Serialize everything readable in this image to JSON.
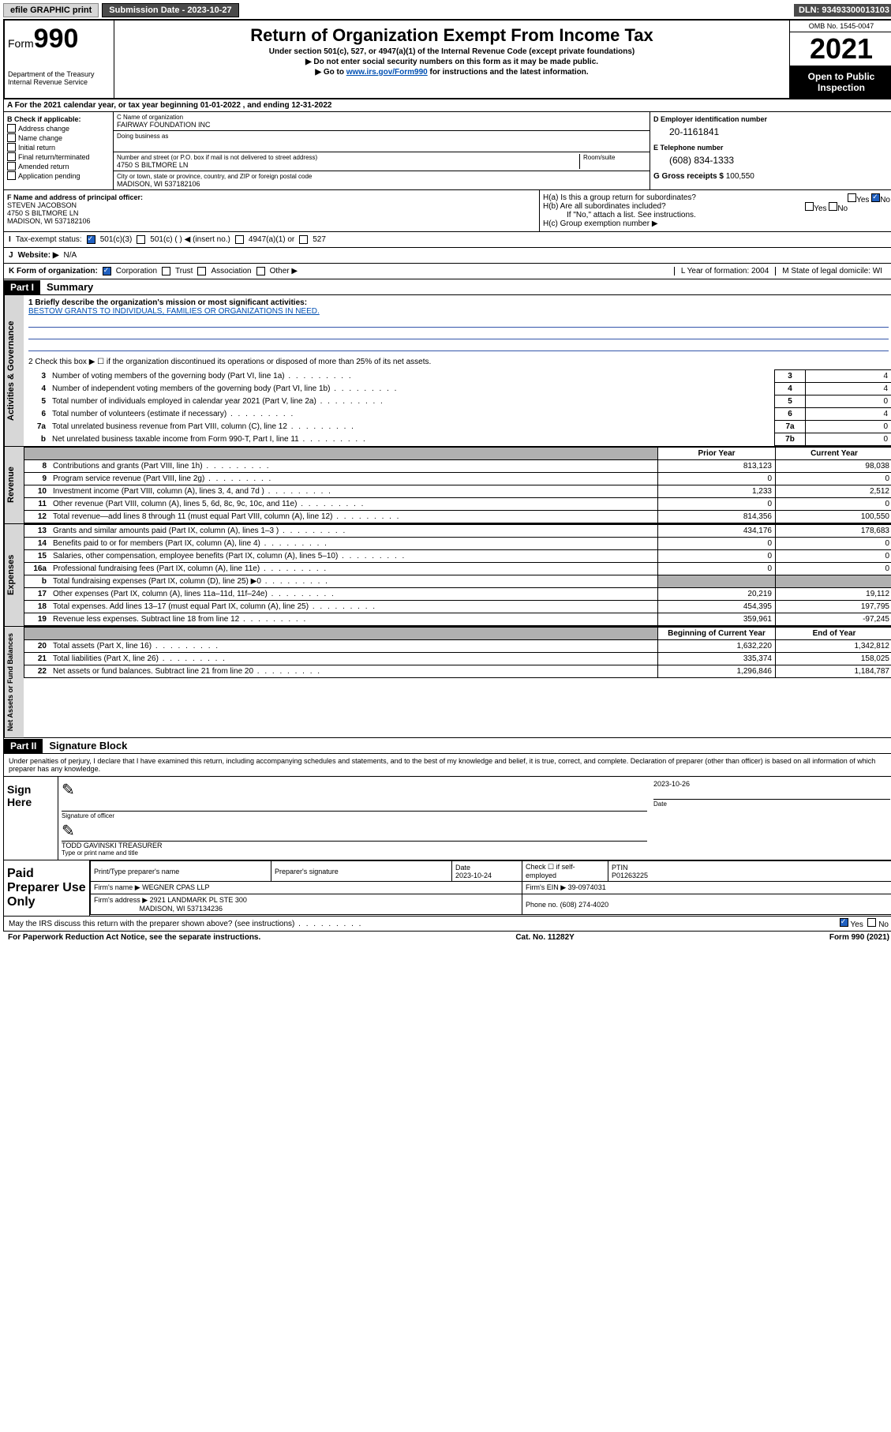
{
  "topbar": {
    "efile": "efile GRAPHIC print",
    "submission_label": "Submission Date - 2023-10-27",
    "dln": "DLN: 93493300013103"
  },
  "header": {
    "form_word": "Form",
    "form_num": "990",
    "dept": "Department of the Treasury",
    "irs": "Internal Revenue Service",
    "title": "Return of Organization Exempt From Income Tax",
    "subtitle": "Under section 501(c), 527, or 4947(a)(1) of the Internal Revenue Code (except private foundations)",
    "note1": "▶ Do not enter social security numbers on this form as it may be made public.",
    "note2_pre": "▶ Go to ",
    "note2_link": "www.irs.gov/Form990",
    "note2_post": " for instructions and the latest information.",
    "omb": "OMB No. 1545-0047",
    "year": "2021",
    "open": "Open to Public Inspection"
  },
  "sectionA": "For the 2021 calendar year, or tax year beginning 01-01-2022    , and ending 12-31-2022",
  "colB": {
    "title": "B Check if applicable:",
    "opts": [
      "Address change",
      "Name change",
      "Initial return",
      "Final return/terminated",
      "Amended return",
      "Application pending"
    ]
  },
  "colC": {
    "name_lbl": "C Name of organization",
    "name": "FAIRWAY FOUNDATION INC",
    "dba_lbl": "Doing business as",
    "addr_lbl": "Number and street (or P.O. box if mail is not delivered to street address)",
    "room_lbl": "Room/suite",
    "addr": "4750 S BILTMORE LN",
    "city_lbl": "City or town, state or province, country, and ZIP or foreign postal code",
    "city": "MADISON, WI  537182106"
  },
  "colD": {
    "ein_lbl": "D Employer identification number",
    "ein": "20-1161841",
    "phone_lbl": "E Telephone number",
    "phone": "(608) 834-1333",
    "gross_lbl": "G Gross receipts $",
    "gross": "100,550"
  },
  "principal": {
    "f_lbl": "F  Name and address of principal officer:",
    "name": "STEVEN JACOBSON",
    "addr1": "4750 S BILTMORE LN",
    "addr2": "MADISON, WI  537182106",
    "ha": "H(a)  Is this a group return for subordinates?",
    "hb": "H(b)  Are all subordinates included?",
    "hb_note": "If \"No,\" attach a list. See instructions.",
    "hc": "H(c)  Group exemption number ▶"
  },
  "taxExempt": {
    "i": "I",
    "lbl": "Tax-exempt status:",
    "opt1": "501(c)(3)",
    "opt2": "501(c) (  ) ◀ (insert no.)",
    "opt3": "4947(a)(1) or",
    "opt4": "527"
  },
  "website": {
    "j": "J",
    "lbl": "Website: ▶",
    "val": "N/A"
  },
  "kRow": {
    "k": "K Form of organization:",
    "opts": [
      "Corporation",
      "Trust",
      "Association",
      "Other ▶"
    ],
    "l": "L Year of formation: 2004",
    "m": "M State of legal domicile: WI"
  },
  "part1": {
    "hdr": "Part I",
    "title": "Summary"
  },
  "governance": {
    "vert": "Activities & Governance",
    "line1_lbl": "1  Briefly describe the organization's mission or most significant activities:",
    "line1_val": "BESTOW GRANTS TO INDIVIDUALS, FAMILIES OR ORGANIZATIONS IN NEED.",
    "line2": "2   Check this box ▶ ☐  if the organization discontinued its operations or disposed of more than 25% of its net assets.",
    "rows": [
      {
        "n": "3",
        "lbl": "Number of voting members of the governing body (Part VI, line 1a)",
        "box": "3",
        "val": "4"
      },
      {
        "n": "4",
        "lbl": "Number of independent voting members of the governing body (Part VI, line 1b)",
        "box": "4",
        "val": "4"
      },
      {
        "n": "5",
        "lbl": "Total number of individuals employed in calendar year 2021 (Part V, line 2a)",
        "box": "5",
        "val": "0"
      },
      {
        "n": "6",
        "lbl": "Total number of volunteers (estimate if necessary)",
        "box": "6",
        "val": "4"
      },
      {
        "n": "7a",
        "lbl": "Total unrelated business revenue from Part VIII, column (C), line 12",
        "box": "7a",
        "val": "0"
      },
      {
        "n": " b",
        "lbl": "Net unrelated business taxable income from Form 990-T, Part I, line 11",
        "box": "7b",
        "val": "0"
      }
    ]
  },
  "revenue": {
    "vert": "Revenue",
    "head_prior": "Prior Year",
    "head_curr": "Current Year",
    "rows": [
      {
        "n": "8",
        "lbl": "Contributions and grants (Part VIII, line 1h)",
        "p": "813,123",
        "c": "98,038"
      },
      {
        "n": "9",
        "lbl": "Program service revenue (Part VIII, line 2g)",
        "p": "0",
        "c": "0"
      },
      {
        "n": "10",
        "lbl": "Investment income (Part VIII, column (A), lines 3, 4, and 7d )",
        "p": "1,233",
        "c": "2,512"
      },
      {
        "n": "11",
        "lbl": "Other revenue (Part VIII, column (A), lines 5, 6d, 8c, 9c, 10c, and 11e)",
        "p": "0",
        "c": "0"
      },
      {
        "n": "12",
        "lbl": "Total revenue—add lines 8 through 11 (must equal Part VIII, column (A), line 12)",
        "p": "814,356",
        "c": "100,550"
      }
    ]
  },
  "expenses": {
    "vert": "Expenses",
    "rows": [
      {
        "n": "13",
        "lbl": "Grants and similar amounts paid (Part IX, column (A), lines 1–3 )",
        "p": "434,176",
        "c": "178,683"
      },
      {
        "n": "14",
        "lbl": "Benefits paid to or for members (Part IX, column (A), line 4)",
        "p": "0",
        "c": "0"
      },
      {
        "n": "15",
        "lbl": "Salaries, other compensation, employee benefits (Part IX, column (A), lines 5–10)",
        "p": "0",
        "c": "0"
      },
      {
        "n": "16a",
        "lbl": "Professional fundraising fees (Part IX, column (A), line 11e)",
        "p": "0",
        "c": "0"
      },
      {
        "n": "b",
        "lbl": "Total fundraising expenses (Part IX, column (D), line 25) ▶0",
        "p": "",
        "c": "",
        "gray": true
      },
      {
        "n": "17",
        "lbl": "Other expenses (Part IX, column (A), lines 11a–11d, 11f–24e)",
        "p": "20,219",
        "c": "19,112"
      },
      {
        "n": "18",
        "lbl": "Total expenses. Add lines 13–17 (must equal Part IX, column (A), line 25)",
        "p": "454,395",
        "c": "197,795"
      },
      {
        "n": "19",
        "lbl": "Revenue less expenses. Subtract line 18 from line 12",
        "p": "359,961",
        "c": "-97,245"
      }
    ]
  },
  "netassets": {
    "vert": "Net Assets or Fund Balances",
    "head_beg": "Beginning of Current Year",
    "head_end": "End of Year",
    "rows": [
      {
        "n": "20",
        "lbl": "Total assets (Part X, line 16)",
        "p": "1,632,220",
        "c": "1,342,812"
      },
      {
        "n": "21",
        "lbl": "Total liabilities (Part X, line 26)",
        "p": "335,374",
        "c": "158,025"
      },
      {
        "n": "22",
        "lbl": "Net assets or fund balances. Subtract line 21 from line 20",
        "p": "1,296,846",
        "c": "1,184,787"
      }
    ]
  },
  "part2": {
    "hdr": "Part II",
    "title": "Signature Block"
  },
  "sig": {
    "decl": "Under penalties of perjury, I declare that I have examined this return, including accompanying schedules and statements, and to the best of my knowledge and belief, it is true, correct, and complete. Declaration of preparer (other than officer) is based on all information of which preparer has any knowledge.",
    "sign_here": "Sign Here",
    "sig_officer": "Signature of officer",
    "date": "Date",
    "date_val": "2023-10-26",
    "name": "TODD GAVINSKI TREASURER",
    "name_lbl": "Type or print name and title"
  },
  "paid": {
    "title": "Paid Preparer Use Only",
    "h1": "Print/Type preparer's name",
    "h2": "Preparer's signature",
    "h3": "Date",
    "h3v": "2023-10-24",
    "h4": "Check ☐ if self-employed",
    "h5": "PTIN",
    "h5v": "P01263225",
    "firm_name_lbl": "Firm's name    ▶",
    "firm_name": "WEGNER CPAS LLP",
    "firm_ein_lbl": "Firm's EIN ▶",
    "firm_ein": "39-0974031",
    "firm_addr_lbl": "Firm's address ▶",
    "firm_addr1": "2921 LANDMARK PL STE 300",
    "firm_addr2": "MADISON, WI  537134236",
    "phone_lbl": "Phone no.",
    "phone": "(608) 274-4020"
  },
  "footer": {
    "discuss": "May the IRS discuss this return with the preparer shown above? (see instructions)",
    "yes": "Yes",
    "no": "No",
    "paperwork": "For Paperwork Reduction Act Notice, see the separate instructions.",
    "cat": "Cat. No. 11282Y",
    "form": "Form 990 (2021)"
  }
}
